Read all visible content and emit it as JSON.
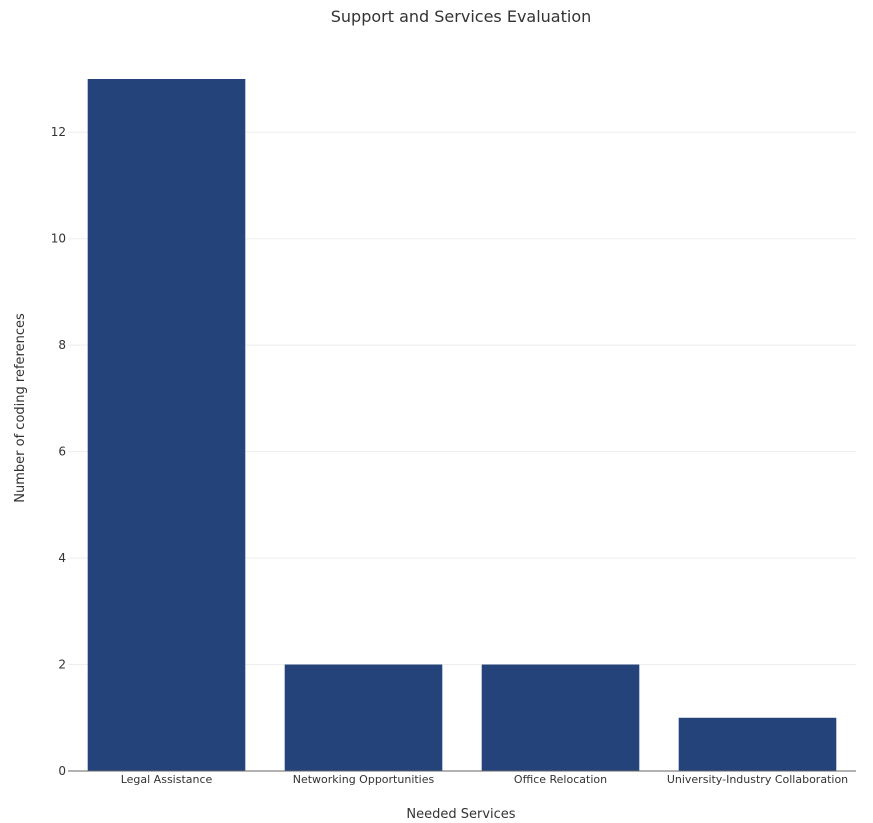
{
  "chart_data": {
    "type": "bar",
    "title": "Support and Services Evaluation",
    "xlabel": "Needed Services",
    "ylabel": "Number of coding references",
    "categories": [
      "Legal Assistance",
      "Networking Opportunities",
      "Office Relocation",
      "University-Industry Collaboration"
    ],
    "values": [
      13,
      2,
      2,
      1
    ],
    "ylim": [
      0,
      13
    ],
    "yticks": [
      0,
      2,
      4,
      6,
      8,
      10,
      12
    ],
    "grid": true,
    "bar_color": "#24437a"
  }
}
